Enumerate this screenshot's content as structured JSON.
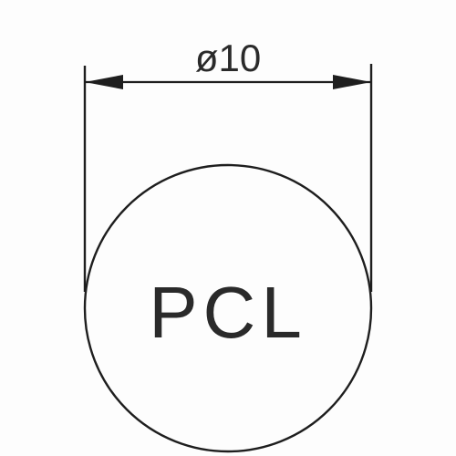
{
  "drawing": {
    "dimension_label": "ø10",
    "circle_label": "PCL"
  },
  "colors": {
    "line": "#1e1e1e",
    "text": "#2a2a2a",
    "background": "#fdfdfd"
  }
}
